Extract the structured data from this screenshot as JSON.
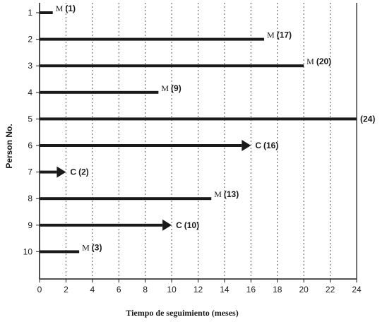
{
  "chart_data": {
    "type": "bar",
    "orientation": "horizontal",
    "xlabel": "Tiempo de seguimiento (meses)",
    "ylabel": "Person No.",
    "xlim": [
      0,
      24
    ],
    "x_ticks": [
      0,
      2,
      4,
      6,
      8,
      10,
      12,
      14,
      16,
      18,
      20,
      22,
      24
    ],
    "grid": "vertical dotted lines",
    "categories": [
      "1",
      "2",
      "3",
      "4",
      "5",
      "6",
      "7",
      "8",
      "9",
      "10"
    ],
    "values": [
      1,
      17,
      20,
      9,
      24,
      16,
      2,
      13,
      10,
      3
    ],
    "bars": [
      {
        "person": "1",
        "value": 1,
        "marker": "M",
        "value_label": "(1)",
        "arrow": false
      },
      {
        "person": "2",
        "value": 17,
        "marker": "M",
        "value_label": "(17)",
        "arrow": false
      },
      {
        "person": "3",
        "value": 20,
        "marker": "M",
        "value_label": "(20)",
        "arrow": false
      },
      {
        "person": "4",
        "value": 9,
        "marker": "M",
        "value_label": "(9)",
        "arrow": false
      },
      {
        "person": "5",
        "value": 24,
        "marker": "",
        "value_label": "(24)",
        "arrow": false
      },
      {
        "person": "6",
        "value": 16,
        "marker": "C",
        "value_label": "(16)",
        "arrow": true
      },
      {
        "person": "7",
        "value": 2,
        "marker": "C",
        "value_label": "(2)",
        "arrow": true
      },
      {
        "person": "8",
        "value": 13,
        "marker": "M",
        "value_label": "(13)",
        "arrow": false
      },
      {
        "person": "9",
        "value": 10,
        "marker": "C",
        "value_label": "(10)",
        "arrow": true
      },
      {
        "person": "10",
        "value": 3,
        "marker": "M",
        "value_label": "(3)",
        "arrow": false
      }
    ],
    "colors": {
      "bar": "#1a1a1a",
      "axis": "#1a1a1a",
      "grid": "#555555"
    }
  }
}
